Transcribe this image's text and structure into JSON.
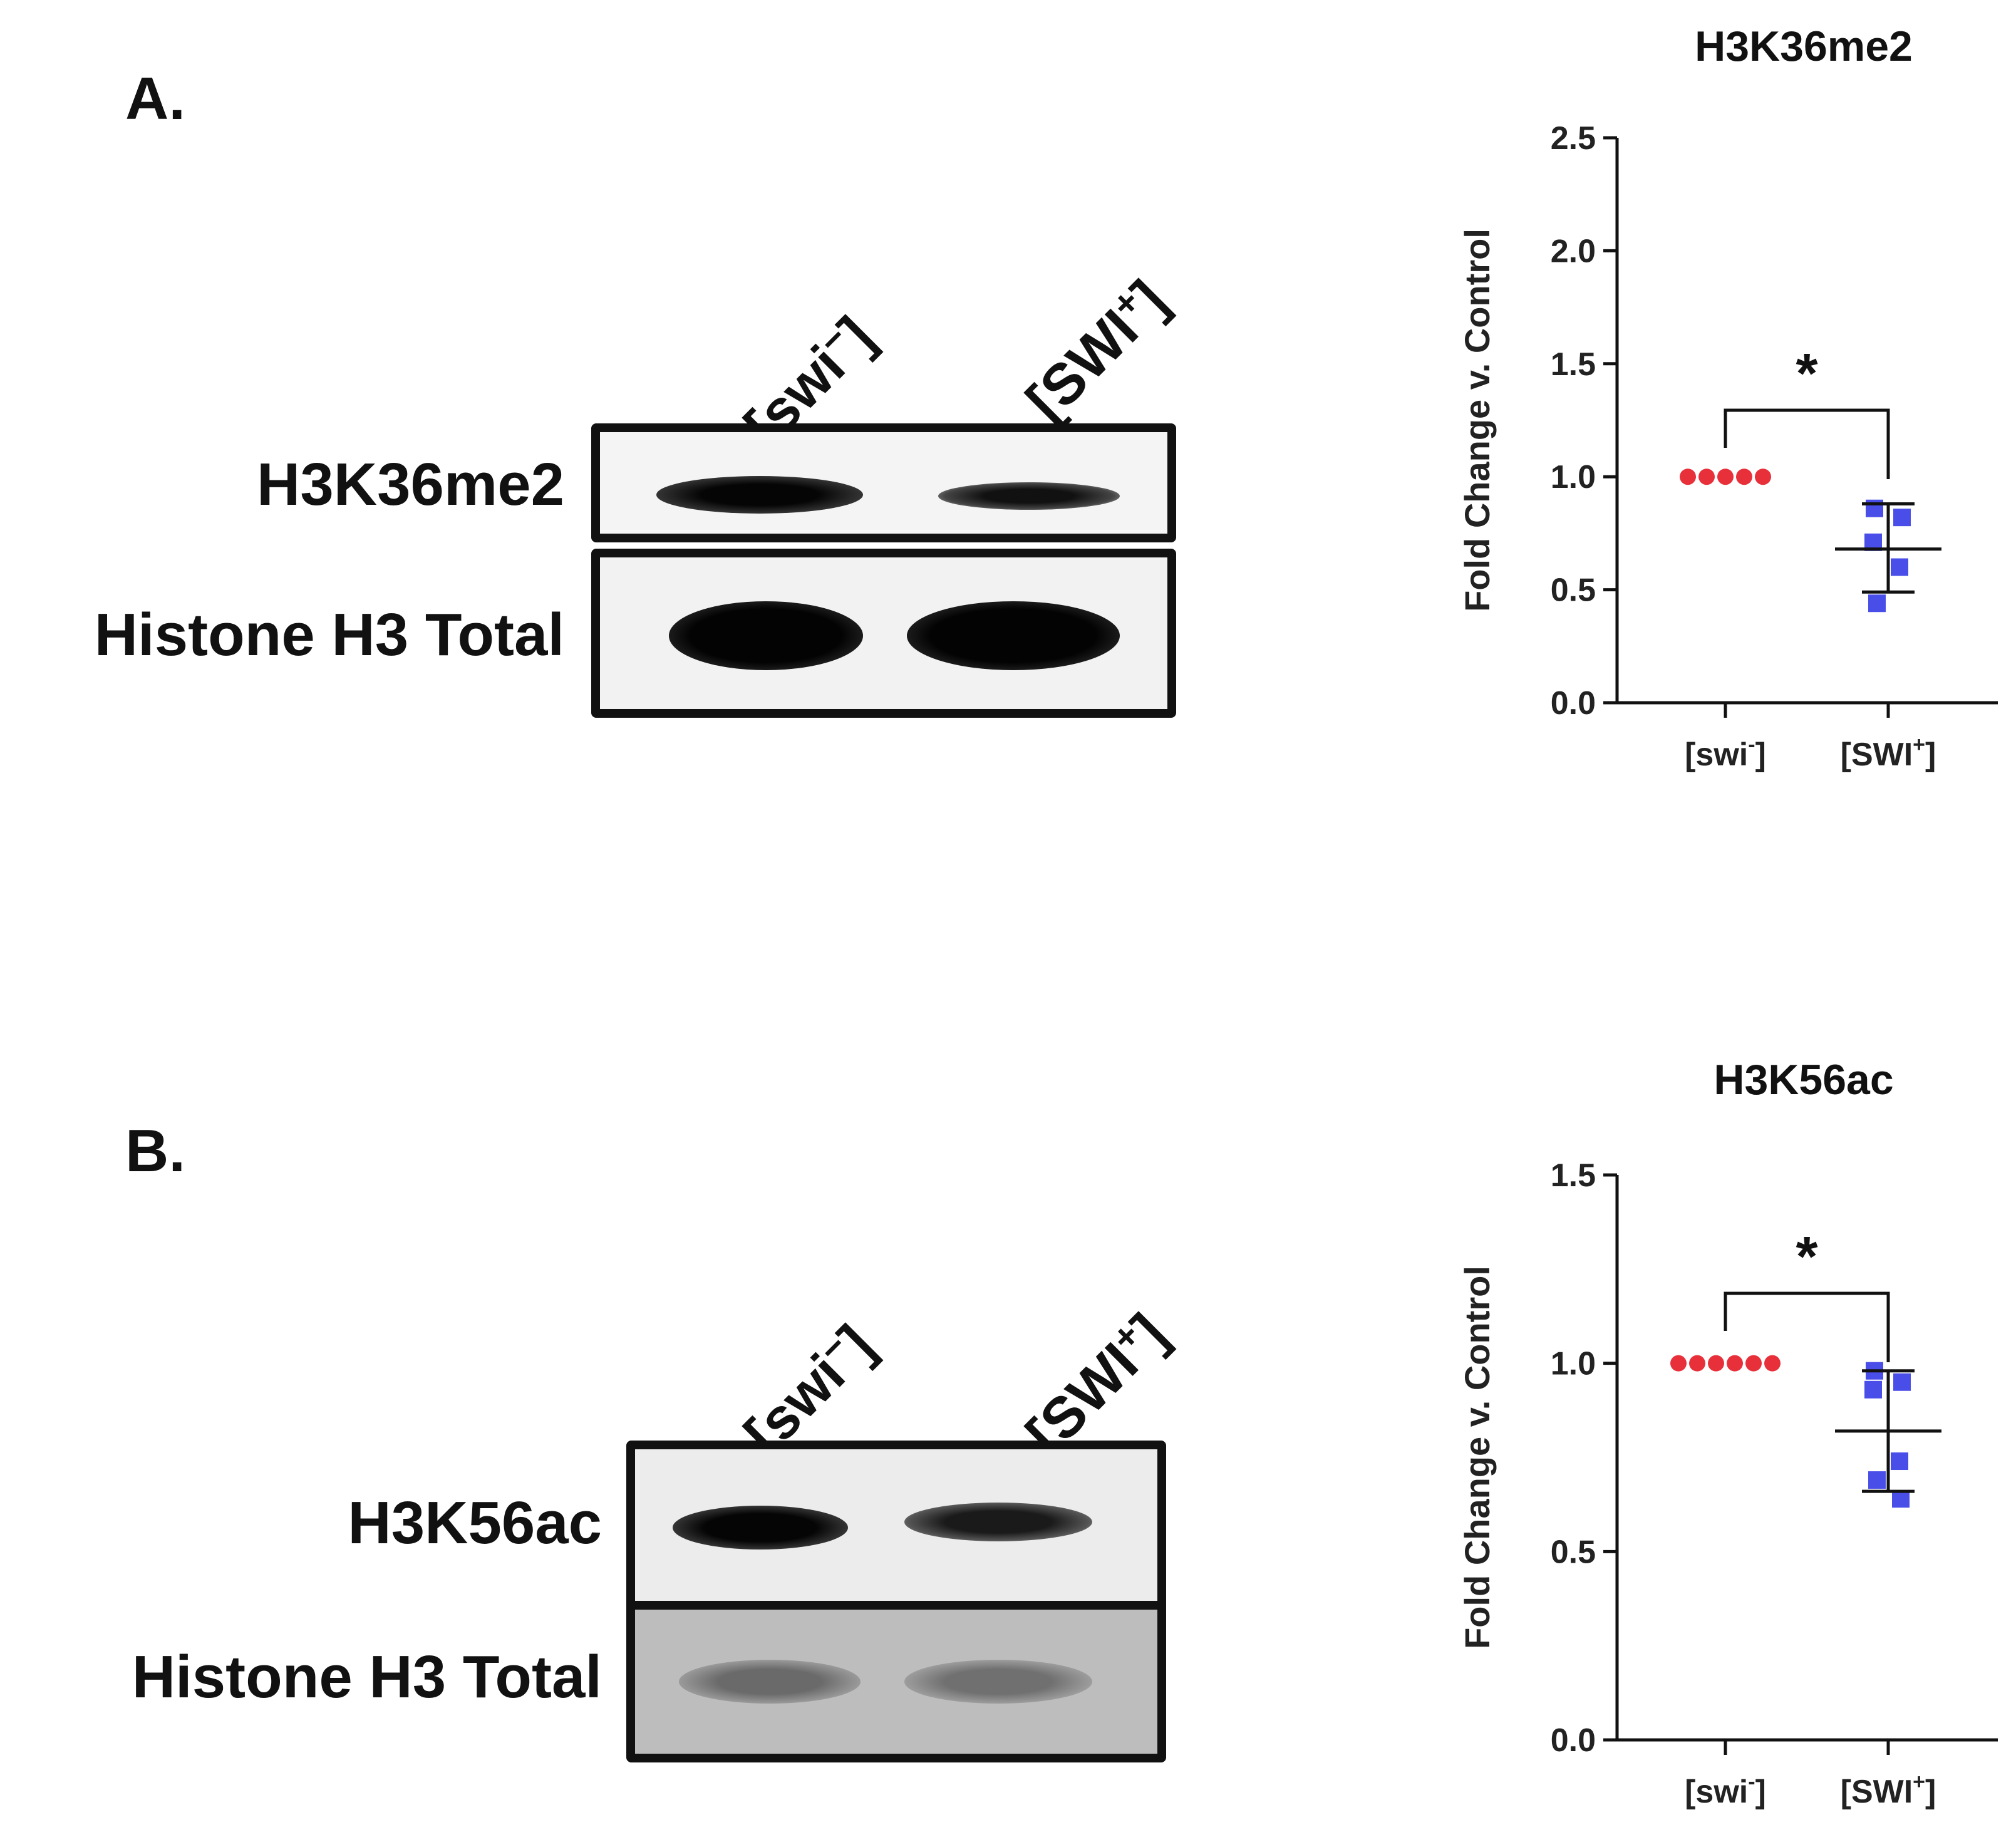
{
  "panels": [
    {
      "letter": "A.",
      "blot": {
        "lanes": [
          {
            "prefix": "[swi",
            "sup": "−",
            "suffix": "]"
          },
          {
            "prefix": "[SWI",
            "sup": "+",
            "suffix": "]"
          }
        ],
        "rows": [
          {
            "label": "H3K36me2"
          },
          {
            "label": "Histone H3 Total"
          }
        ]
      }
    },
    {
      "letter": "B.",
      "blot": {
        "lanes": [
          {
            "prefix": "[swi",
            "sup": "−",
            "suffix": "]"
          },
          {
            "prefix": "[SWI",
            "sup": "+",
            "suffix": "]"
          }
        ],
        "rows": [
          {
            "label": "H3K56ac"
          },
          {
            "label": "Histone H3 Total"
          }
        ]
      }
    }
  ],
  "chart_data": [
    {
      "type": "scatter",
      "title": "H3K36me2",
      "ylabel": "Fold Change v. Control",
      "ylim": [
        0,
        2.5
      ],
      "yticks": [
        0.0,
        0.5,
        1.0,
        1.5,
        2.0,
        2.5
      ],
      "ytick_labels": [
        "0.0",
        "0.5",
        "1.0",
        "1.5",
        "2.0",
        "2.5"
      ],
      "categories": [
        {
          "prefix": "[swi",
          "sup": "-",
          "suffix": "]"
        },
        {
          "prefix": "[SWI",
          "sup": "+",
          "suffix": "]"
        }
      ],
      "series": [
        {
          "color": "#e8303a",
          "marker": "circle",
          "values": [
            1.0,
            1.0,
            1.0,
            1.0,
            1.0
          ]
        },
        {
          "color": "#4a4ee8",
          "marker": "square",
          "values": [
            0.86,
            0.82,
            0.71,
            0.6,
            0.44
          ],
          "mean": 0.68,
          "sd_low": 0.49,
          "sd_high": 0.88
        }
      ],
      "significance": "*",
      "grid": false
    },
    {
      "type": "scatter",
      "title": "H3K56ac",
      "ylabel": "Fold Change v. Control",
      "ylim": [
        0,
        1.5
      ],
      "yticks": [
        0.0,
        0.5,
        1.0,
        1.5
      ],
      "ytick_labels": [
        "0.0",
        "0.5",
        "1.0",
        "1.5"
      ],
      "categories": [
        {
          "prefix": "[swi",
          "sup": "-",
          "suffix": "]"
        },
        {
          "prefix": "[SWI",
          "sup": "+",
          "suffix": "]"
        }
      ],
      "series": [
        {
          "color": "#e8303a",
          "marker": "circle",
          "values": [
            1.0,
            1.0,
            1.0,
            1.0,
            1.0,
            1.0
          ]
        },
        {
          "color": "#4a4ee8",
          "marker": "square",
          "values": [
            0.98,
            0.95,
            0.93,
            0.74,
            0.69,
            0.64
          ],
          "mean": 0.82,
          "sd_low": 0.66,
          "sd_high": 0.98
        }
      ],
      "significance": "*",
      "grid": false
    }
  ]
}
